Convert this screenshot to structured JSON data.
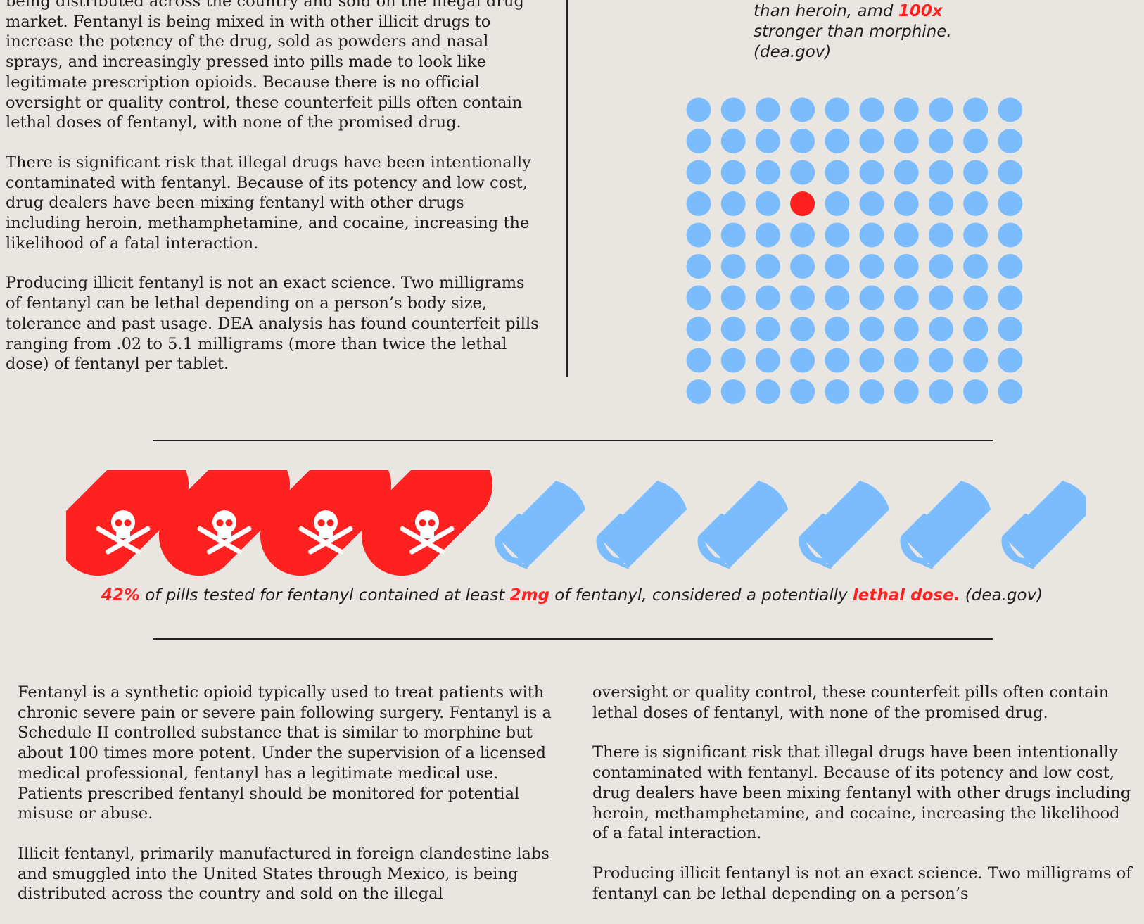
{
  "top_left_paragraphs": [
    "being distributed across the country and sold on the illegal drug market. Fentanyl is being mixed in with other illicit drugs to increase the potency of the drug, sold as powders and nasal sprays, and increasingly pressed into pills made to look like legitimate prescription opioids. Because there is no official oversight or quality control, these counterfeit pills often contain lethal doses of fentanyl, with none of the promised drug.",
    "There is significant risk that illegal drugs have been intentionally contaminated with fentanyl. Because of its potency and low cost, drug dealers have been mixing fentanyl with other drugs including heroin, methamphetamine, and cocaine, increasing the likelihood of a fatal interaction.",
    "Producing illicit fentanyl is not an exact science. Two milligrams of fentanyl can be lethal depending on a person’s body size, tolerance and past usage. DEA analysis has found counterfeit pills ranging from .02 to 5.1 milligrams (more than twice the lethal dose) of fentanyl per tablet."
  ],
  "top_quote": {
    "line1_text": "than heroin, amd ",
    "line1_highlight": "100x",
    "line2": "stronger than morphine.",
    "source": "(dea.gov)"
  },
  "dot_grid": {
    "rows": 10,
    "cols": 10,
    "highlight_row": 3,
    "highlight_col": 3,
    "base_color": "#7bbcff",
    "highlight_color": "#ff2020"
  },
  "pill_chart": {
    "total_pills": 10,
    "lethal_fraction": 0.42,
    "red_color": "#ff2020",
    "blue_color": "#7bbcff",
    "lethal_icon": "skull-crossbones-icon",
    "safe_icon": "capsule-icon"
  },
  "pill_caption": {
    "pct": "42%",
    "text1": " of pills tested for fentanyl contained at least ",
    "dose": "2mg",
    "text2": " of fentanyl, considered a potentially ",
    "lethal": "lethal dose.",
    "source": " (dea.gov)"
  },
  "bottom_left_paragraphs": [
    "Fentanyl is a synthetic opioid typically used to treat patients with chronic severe pain or severe pain following surgery. Fentanyl is a Schedule II controlled substance that is similar to morphine but about 100 times more potent.  Under the supervision of a licensed medical professional, fentanyl has a legitimate medical use.  Patients prescribed fentanyl should be monitored for potential misuse or abuse.",
    "Illicit fentanyl, primarily manufactured in foreign clandestine labs and smuggled into the United States through Mexico, is being distributed across the country and sold on the illegal"
  ],
  "bottom_right_paragraphs": [
    "oversight or quality control, these counterfeit pills often contain lethal doses of fentanyl, with none of the promised drug.",
    "There is significant risk that illegal drugs have been intentionally contaminated with fentanyl. Because of its potency and low cost, drug dealers have been mixing fentanyl with other drugs including heroin, methamphetamine, and cocaine, increasing the likelihood of a fatal interaction.",
    "Producing illicit fentanyl is not an exact science.  Two milligrams of fentanyl can be lethal depending on a person’s"
  ]
}
